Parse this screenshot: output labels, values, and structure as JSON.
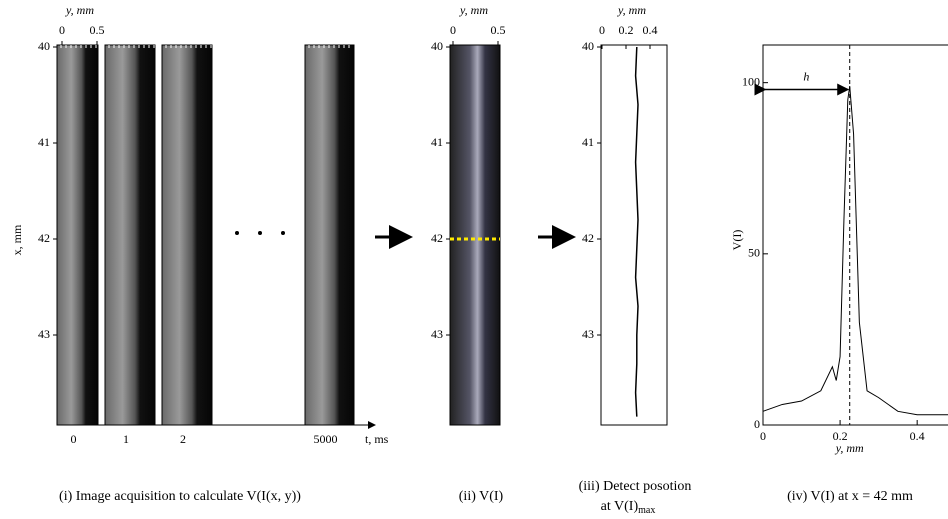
{
  "panels": [
    {
      "caption": "(i) Image acquisition to calculate V(I(x, y))",
      "top_axis_label": "y, mm",
      "top_ticks": [
        0,
        0.5
      ],
      "left_axis_label": "x, mm",
      "left_ticks": [
        40,
        41,
        42,
        43
      ],
      "frames": [
        "0",
        "1",
        "2",
        "5000"
      ],
      "time_axis_label": "t, ms"
    },
    {
      "caption": "(ii) V(I)",
      "top_axis_label": "y, mm",
      "top_ticks": [
        0,
        0.5
      ],
      "left_ticks": [
        40,
        41,
        42,
        43
      ]
    },
    {
      "caption_lines": [
        "(iii) Detect posotion",
        "at V(I)"
      ],
      "caption_subscript": "max",
      "top_axis_label": "y, mm",
      "top_ticks": [
        0,
        0.2,
        0.4
      ],
      "left_ticks": [
        40,
        41,
        42,
        43
      ],
      "trace_x_mm": [
        40,
        40.3,
        40.6,
        40.9,
        41.2,
        41.5,
        41.8,
        42.1,
        42.4,
        42.7,
        43,
        43.3,
        43.6,
        43.85
      ],
      "trace_y_mm": [
        0.29,
        0.28,
        0.3,
        0.29,
        0.28,
        0.29,
        0.3,
        0.29,
        0.28,
        0.3,
        0.29,
        0.29,
        0.28,
        0.29
      ]
    }
  ],
  "chart_data": {
    "type": "line",
    "caption": "(iv) V(I) at x = 42 mm",
    "x_label": "y, mm",
    "y_label": "V(I)",
    "annotation": "h",
    "peak_x": 0.225,
    "x": [
      0,
      0.05,
      0.1,
      0.15,
      0.18,
      0.19,
      0.2,
      0.21,
      0.22,
      0.225,
      0.235,
      0.25,
      0.27,
      0.3,
      0.35,
      0.4,
      0.48
    ],
    "series": [
      {
        "name": "V(I)",
        "color": "#000000",
        "values": [
          4,
          6,
          7,
          10,
          17,
          13,
          20,
          60,
          95,
          99,
          85,
          30,
          10,
          8,
          4,
          3,
          3
        ]
      }
    ],
    "xlim": [
      0,
      0.48
    ],
    "ylim": [
      0,
      111
    ],
    "xticks": [
      0,
      0.2,
      0.4
    ],
    "yticks": [
      0,
      50,
      100
    ]
  }
}
